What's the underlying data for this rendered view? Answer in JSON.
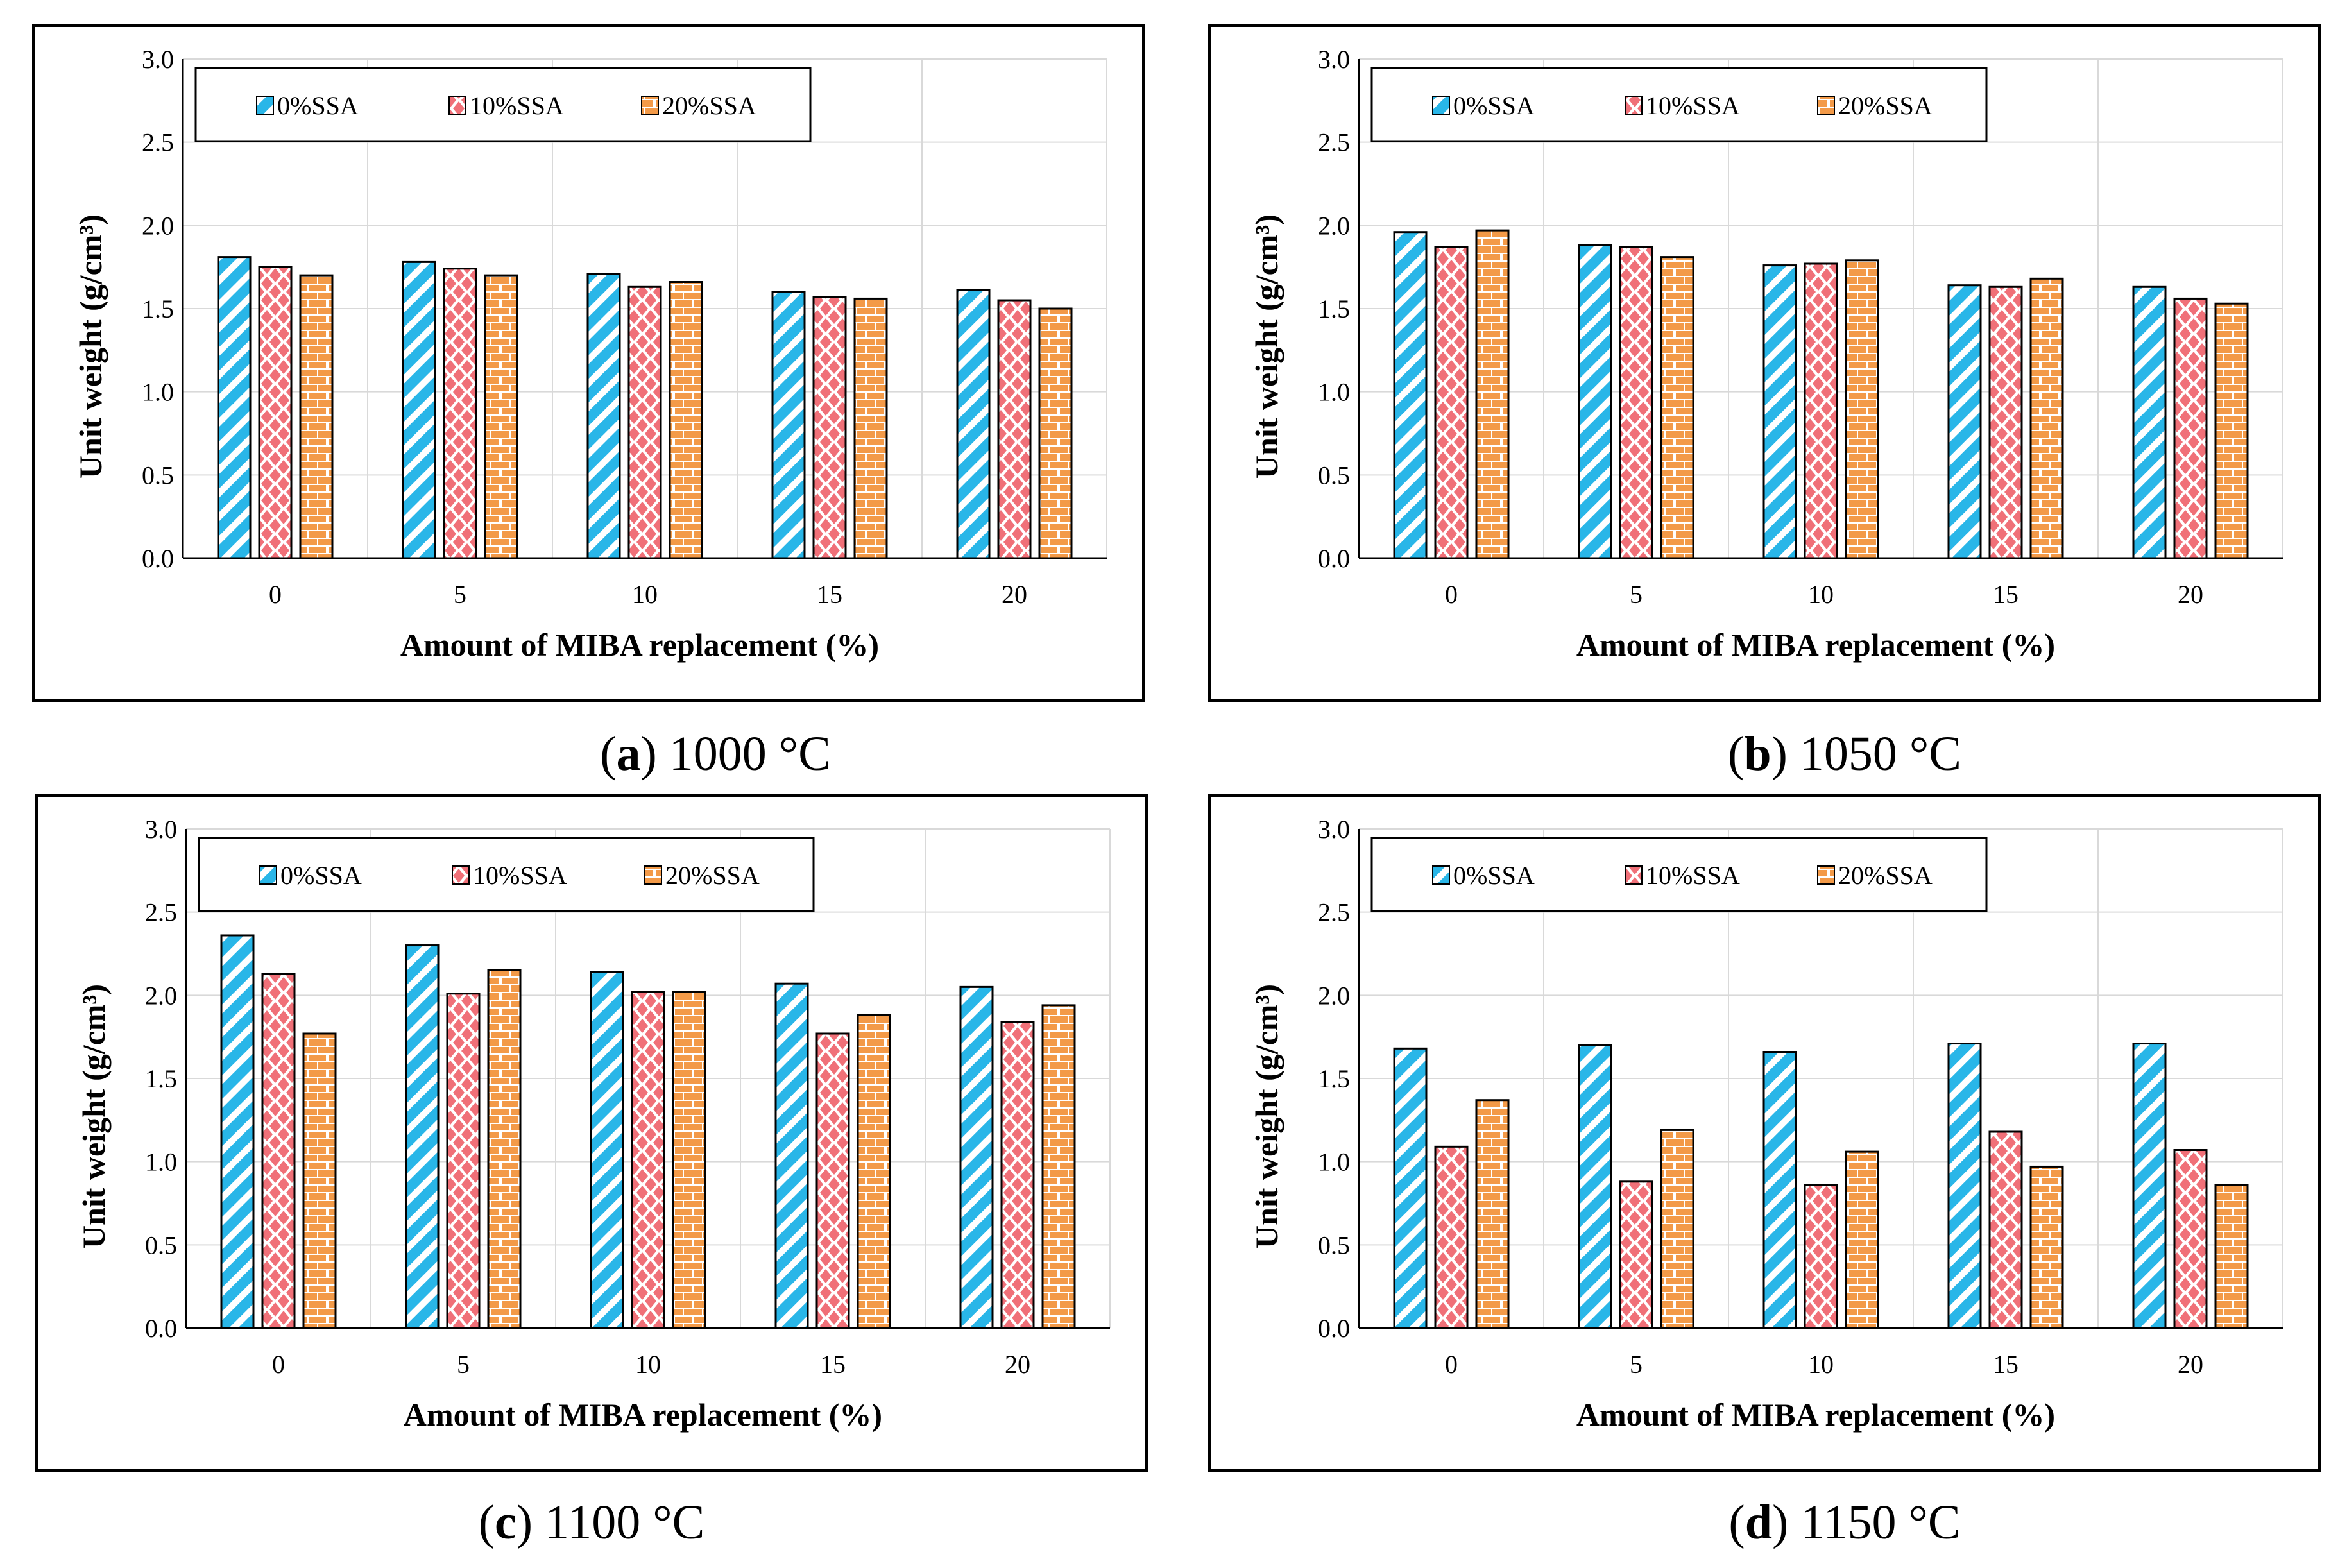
{
  "figure": {
    "colors": {
      "blue": "#29B6E8",
      "red": "#F07078",
      "orange": "#F39A48",
      "grid": "#D9D9D9",
      "axis": "#000000"
    }
  },
  "chart_data": [
    {
      "type": "bar",
      "panel": "a",
      "caption_letter": "a",
      "caption_text": "1000 °C",
      "xlabel": "Amount of MIBA replacement (%)",
      "ylabel": "Unit weight (g/cm³)",
      "ylim": [
        0,
        3.0
      ],
      "yticks": [
        "0.0",
        "0.5",
        "1.0",
        "1.5",
        "2.0",
        "2.5",
        "3.0"
      ],
      "categories": [
        "0",
        "5",
        "10",
        "15",
        "20"
      ],
      "legend_position": "top-left",
      "series": [
        {
          "name": "0%SSA",
          "values": [
            1.81,
            1.78,
            1.71,
            1.6,
            1.61
          ]
        },
        {
          "name": "10%SSA",
          "values": [
            1.75,
            1.74,
            1.63,
            1.57,
            1.55
          ]
        },
        {
          "name": "20%SSA",
          "values": [
            1.7,
            1.7,
            1.66,
            1.56,
            1.5
          ]
        }
      ]
    },
    {
      "type": "bar",
      "panel": "b",
      "caption_letter": "b",
      "caption_text": "1050 °C",
      "xlabel": "Amount of MIBA replacement (%)",
      "ylabel": "Unit weight (g/cm³)",
      "ylim": [
        0,
        3.0
      ],
      "yticks": [
        "0.0",
        "0.5",
        "1.0",
        "1.5",
        "2.0",
        "2.5",
        "3.0"
      ],
      "categories": [
        "0",
        "5",
        "10",
        "15",
        "20"
      ],
      "legend_position": "top-left",
      "series": [
        {
          "name": "0%SSA",
          "values": [
            1.96,
            1.88,
            1.76,
            1.64,
            1.63
          ]
        },
        {
          "name": "10%SSA",
          "values": [
            1.87,
            1.87,
            1.77,
            1.63,
            1.56
          ]
        },
        {
          "name": "20%SSA",
          "values": [
            1.97,
            1.81,
            1.79,
            1.68,
            1.53
          ]
        }
      ]
    },
    {
      "type": "bar",
      "panel": "c",
      "caption_letter": "c",
      "caption_text": "1100 °C",
      "xlabel": "Amount of MIBA replacement (%)",
      "ylabel": "Unit weight (g/cm³)",
      "ylim": [
        0,
        3.0
      ],
      "yticks": [
        "0.0",
        "0.5",
        "1.0",
        "1.5",
        "2.0",
        "2.5",
        "3.0"
      ],
      "categories": [
        "0",
        "5",
        "10",
        "15",
        "20"
      ],
      "legend_position": "top-left",
      "series": [
        {
          "name": "0%SSA",
          "values": [
            2.36,
            2.3,
            2.14,
            2.07,
            2.05
          ]
        },
        {
          "name": "10%SSA",
          "values": [
            2.13,
            2.01,
            2.02,
            1.77,
            1.84
          ]
        },
        {
          "name": "20%SSA",
          "values": [
            1.77,
            2.15,
            2.02,
            1.88,
            1.94
          ]
        }
      ]
    },
    {
      "type": "bar",
      "panel": "d",
      "caption_letter": "d",
      "caption_text": "1150 °C",
      "xlabel": "Amount of MIBA replacement (%)",
      "ylabel": "Unit weight (g/cm³)",
      "ylim": [
        0,
        3.0
      ],
      "yticks": [
        "0.0",
        "0.5",
        "1.0",
        "1.5",
        "2.0",
        "2.5",
        "3.0"
      ],
      "categories": [
        "0",
        "5",
        "10",
        "15",
        "20"
      ],
      "legend_position": "top-left",
      "series": [
        {
          "name": "0%SSA",
          "values": [
            1.68,
            1.7,
            1.66,
            1.71,
            1.71
          ]
        },
        {
          "name": "10%SSA",
          "values": [
            1.09,
            0.88,
            0.86,
            1.18,
            1.07
          ]
        },
        {
          "name": "20%SSA",
          "values": [
            1.37,
            1.19,
            1.06,
            0.97,
            0.86
          ]
        }
      ]
    }
  ]
}
